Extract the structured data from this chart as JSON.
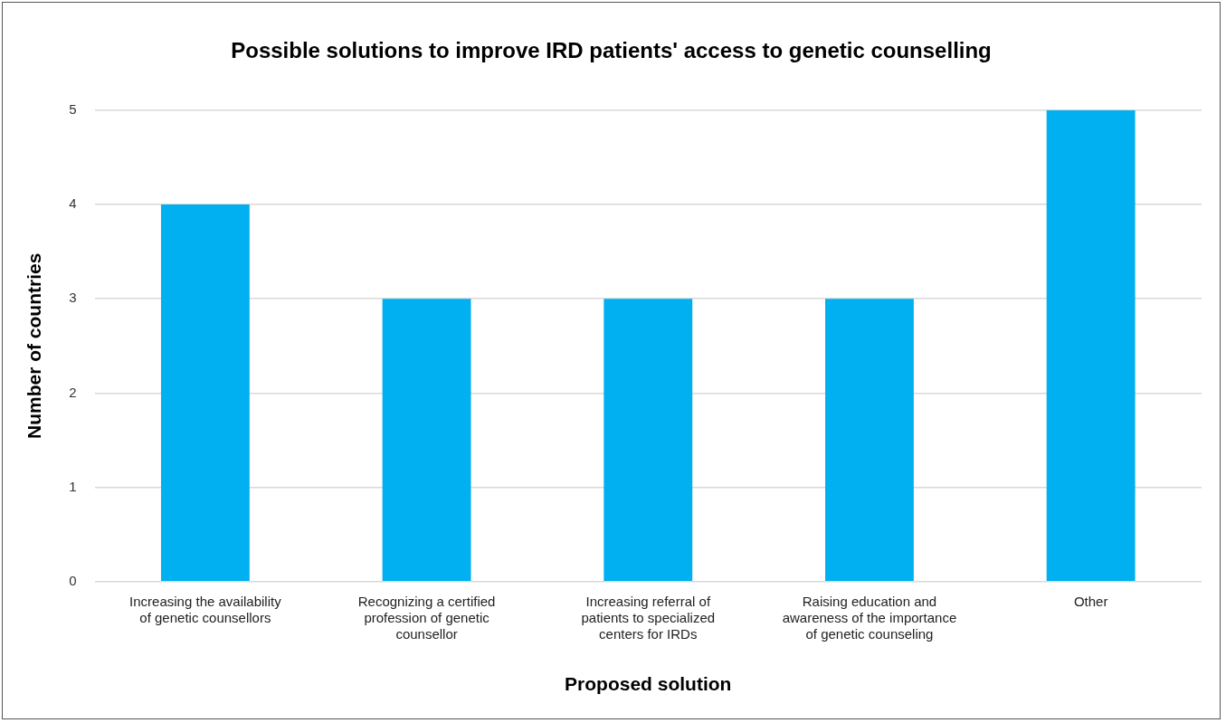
{
  "chart_data": {
    "type": "bar",
    "title": "Possible solutions to improve IRD patients' access to genetic counselling",
    "xlabel": "Proposed solution",
    "ylabel": "Number of countries",
    "categories": [
      "Increasing the availability of genetic counsellors",
      "Recognizing a certified profession of genetic counsellor",
      "Increasing referral of patients to specialized centers for IRDs",
      "Raising education and awareness of the importance of genetic counseling",
      "Other"
    ],
    "values": [
      4,
      3,
      3,
      3,
      5
    ],
    "color": "#00b0f0",
    "ylim": [
      0,
      5
    ],
    "yticks": [
      0,
      1,
      2,
      3,
      4,
      5
    ],
    "grid": "y"
  }
}
